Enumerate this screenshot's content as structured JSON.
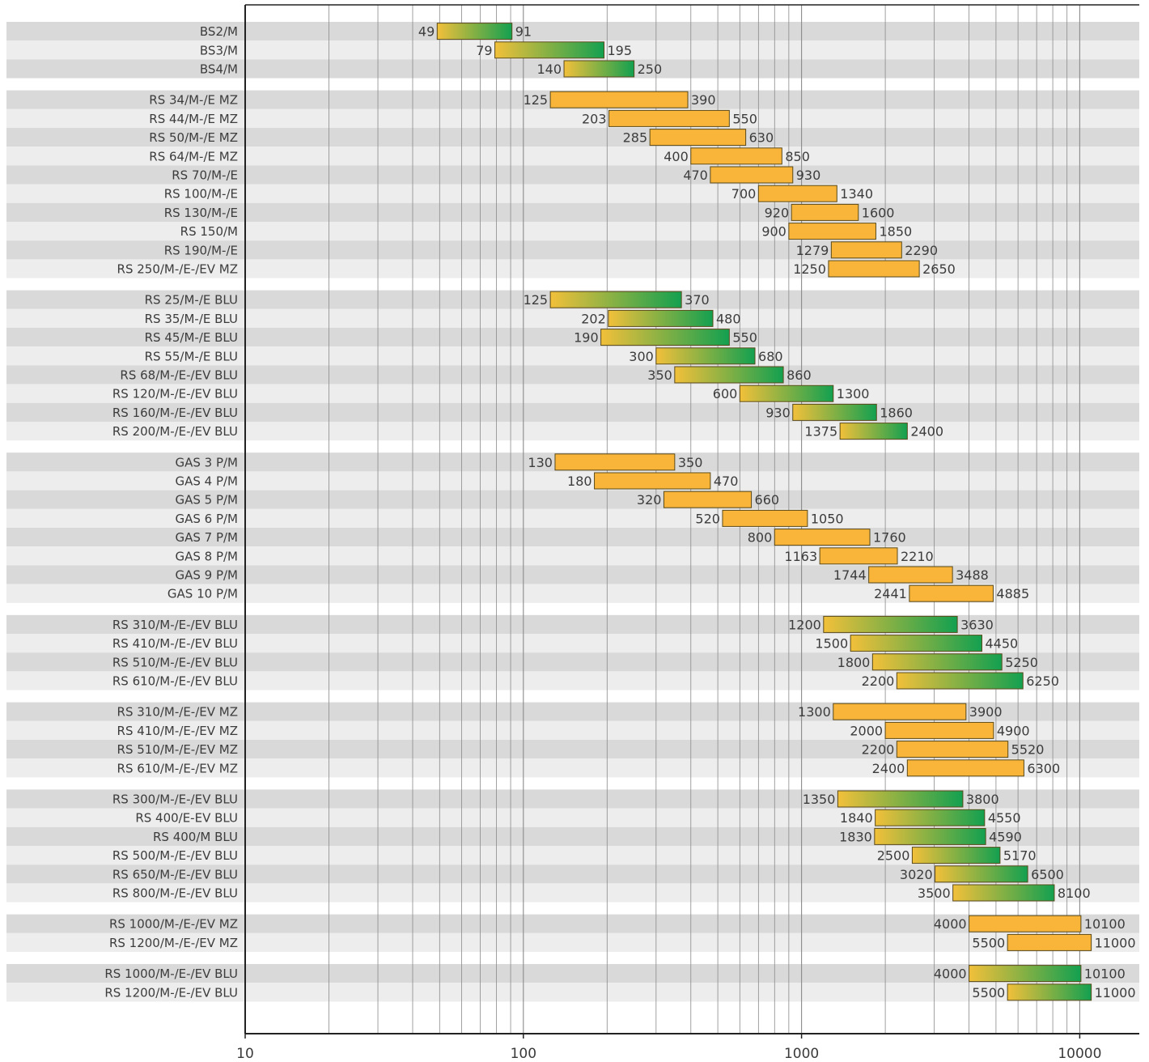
{
  "chart_data": {
    "type": "bar",
    "orientation": "horizontal-range",
    "x_scale": "log",
    "xlim": [
      10,
      16000
    ],
    "x_ticks": [
      {
        "value": 10,
        "label": "10"
      },
      {
        "value": 100,
        "label": "100"
      },
      {
        "value": 1000,
        "label": "1000"
      },
      {
        "value": 10000,
        "label": "10000"
      }
    ],
    "grid": true,
    "groups": [
      {
        "style": "gradient",
        "rows": [
          {
            "label": "BS2/M",
            "min": 49,
            "max": 91
          },
          {
            "label": "BS3/M",
            "min": 79,
            "max": 195
          },
          {
            "label": "BS4/M",
            "min": 140,
            "max": 250
          }
        ]
      },
      {
        "style": "orange",
        "rows": [
          {
            "label": "RS 34/M-/E MZ",
            "min": 125,
            "max": 390
          },
          {
            "label": "RS 44/M-/E MZ",
            "min": 203,
            "max": 550
          },
          {
            "label": "RS 50/M-/E MZ",
            "min": 285,
            "max": 630
          },
          {
            "label": "RS 64/M-/E MZ",
            "min": 400,
            "max": 850
          },
          {
            "label": "RS 70/M-/E",
            "min": 470,
            "max": 930
          },
          {
            "label": "RS 100/M-/E",
            "min": 700,
            "max": 1340
          },
          {
            "label": "RS 130/M-/E",
            "min": 920,
            "max": 1600
          },
          {
            "label": "RS 150/M",
            "min": 900,
            "max": 1850
          },
          {
            "label": "RS 190/M-/E",
            "min": 1279,
            "max": 2290
          },
          {
            "label": "RS 250/M-/E-/EV MZ",
            "min": 1250,
            "max": 2650
          }
        ]
      },
      {
        "style": "gradient",
        "rows": [
          {
            "label": "RS 25/M-/E BLU",
            "min": 125,
            "max": 370
          },
          {
            "label": "RS 35/M-/E BLU",
            "min": 202,
            "max": 480
          },
          {
            "label": "RS 45/M-/E BLU",
            "min": 190,
            "max": 550
          },
          {
            "label": "RS 55/M-/E BLU",
            "min": 300,
            "max": 680
          },
          {
            "label": "RS 68/M-/E-/EV BLU",
            "min": 350,
            "max": 860
          },
          {
            "label": "RS 120/M-/E-/EV BLU",
            "min": 600,
            "max": 1300
          },
          {
            "label": "RS 160/M-/E-/EV BLU",
            "min": 930,
            "max": 1860
          },
          {
            "label": "RS 200/M-/E-/EV BLU",
            "min": 1375,
            "max": 2400
          }
        ]
      },
      {
        "style": "orange",
        "rows": [
          {
            "label": "GAS 3 P/M",
            "min": 130,
            "max": 350
          },
          {
            "label": "GAS 4 P/M",
            "min": 180,
            "max": 470
          },
          {
            "label": "GAS 5 P/M",
            "min": 320,
            "max": 660
          },
          {
            "label": "GAS 6 P/M",
            "min": 520,
            "max": 1050
          },
          {
            "label": "GAS 7 P/M",
            "min": 800,
            "max": 1760
          },
          {
            "label": "GAS 8 P/M",
            "min": 1163,
            "max": 2210
          },
          {
            "label": "GAS 9 P/M",
            "min": 1744,
            "max": 3488
          },
          {
            "label": "GAS 10 P/M",
            "min": 2441,
            "max": 4885
          }
        ]
      },
      {
        "style": "gradient",
        "rows": [
          {
            "label": "RS 310/M-/E-/EV BLU",
            "min": 1200,
            "max": 3630
          },
          {
            "label": "RS 410/M-/E-/EV BLU",
            "min": 1500,
            "max": 4450
          },
          {
            "label": "RS 510/M-/E-/EV BLU",
            "min": 1800,
            "max": 5250
          },
          {
            "label": "RS 610/M-/E-/EV BLU",
            "min": 2200,
            "max": 6250
          }
        ]
      },
      {
        "style": "orange",
        "rows": [
          {
            "label": "RS 310/M-/E-/EV MZ",
            "min": 1300,
            "max": 3900
          },
          {
            "label": "RS 410/M-/E-/EV MZ",
            "min": 2000,
            "max": 4900
          },
          {
            "label": "RS 510/M-/E-/EV MZ",
            "min": 2200,
            "max": 5520
          },
          {
            "label": "RS 610/M-/E-/EV MZ",
            "min": 2400,
            "max": 6300
          }
        ]
      },
      {
        "style": "gradient",
        "rows": [
          {
            "label": "RS 300/M-/E-/EV BLU",
            "min": 1350,
            "max": 3800
          },
          {
            "label": "RS 400/E-EV BLU",
            "min": 1840,
            "max": 4550
          },
          {
            "label": "RS 400/M BLU",
            "min": 1830,
            "max": 4590
          },
          {
            "label": "RS 500/M-/E-/EV BLU",
            "min": 2500,
            "max": 5170
          },
          {
            "label": "RS 650/M-/E-/EV BLU",
            "min": 3020,
            "max": 6500
          },
          {
            "label": "RS 800/M-/E-/EV BLU",
            "min": 3500,
            "max": 8100
          }
        ]
      },
      {
        "style": "orange",
        "rows": [
          {
            "label": "RS 1000/M-/E-/EV MZ",
            "min": 4000,
            "max": 10100
          },
          {
            "label": "RS 1200/M-/E-/EV MZ",
            "min": 5500,
            "max": 11000
          }
        ]
      },
      {
        "style": "gradient",
        "rows": [
          {
            "label": "RS 1000/M-/E-/EV BLU",
            "min": 4000,
            "max": 10100
          },
          {
            "label": "RS 1200/M-/E-/EV BLU",
            "min": 5500,
            "max": 11000
          }
        ]
      }
    ]
  },
  "colors": {
    "orange_fill": "#f8b53a",
    "gradient_start": "#f2c03a",
    "gradient_end": "#13a050",
    "bar_stroke": "#5a4a1a",
    "band_dark": "#d9d9d9",
    "band_light": "#ededed",
    "gridline": "#8a8a8a",
    "axis": "#222222"
  }
}
